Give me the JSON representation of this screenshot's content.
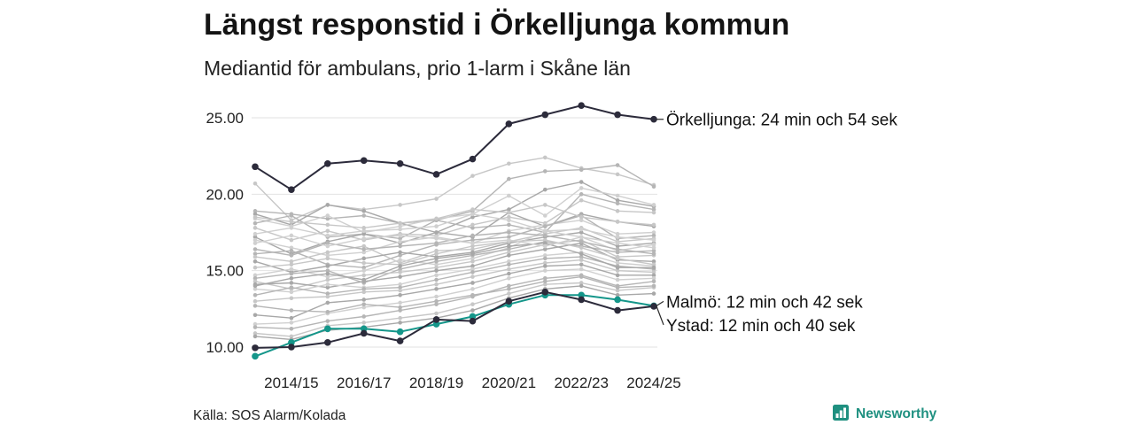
{
  "chart_data": {
    "type": "line",
    "title": "Längst responstid i Örkelljunga kommun",
    "subtitle": "Mediantid för ambulans, prio 1-larm i Skåne län",
    "x": [
      2013,
      2014,
      2015,
      2016,
      2017,
      2018,
      2019,
      2020,
      2021,
      2022,
      2023,
      2024
    ],
    "x_ticks": [
      {
        "value": 2014,
        "label": "2014/15"
      },
      {
        "value": 2016,
        "label": "2016/17"
      },
      {
        "value": 2018,
        "label": "2018/19"
      },
      {
        "value": 2020,
        "label": "2020/21"
      },
      {
        "value": 2022,
        "label": "2022/23"
      },
      {
        "value": 2024,
        "label": "2024/25"
      }
    ],
    "y_ticks": [
      {
        "value": 10,
        "label": "10.00"
      },
      {
        "value": 15,
        "label": "15.00"
      },
      {
        "value": 20,
        "label": "20.00"
      },
      {
        "value": 25,
        "label": "25.00"
      }
    ],
    "ylim": [
      10,
      25
    ],
    "grid": true,
    "grid_color": "#e2e2e2",
    "annotation_color": "#2a2a2a",
    "highlighted_series": [
      {
        "label": "Örkelljunga: 24 min och 54 sek",
        "color": "#2c2b3b",
        "values": [
          21.8,
          20.3,
          22.0,
          22.2,
          22.0,
          21.3,
          22.3,
          24.6,
          25.2,
          25.8,
          25.2,
          24.9
        ]
      },
      {
        "label": "Malmö: 12 min och 42 sek",
        "color": "#14968a",
        "values": [
          9.4,
          10.3,
          11.2,
          11.2,
          11.0,
          11.5,
          12.0,
          12.8,
          13.4,
          13.4,
          13.1,
          12.7
        ]
      },
      {
        "label": "Ystad: 12 min och 40 sek",
        "color": "#2c2b3b",
        "values": [
          9.95,
          10.0,
          10.3,
          10.9,
          10.4,
          11.8,
          11.7,
          13.0,
          13.6,
          13.1,
          12.4,
          12.67
        ]
      }
    ],
    "background_series": [
      {
        "color": "#c7c7c7",
        "values": [
          20.7,
          18.3,
          19.3,
          19.0,
          19.3,
          19.7,
          21.2,
          22.0,
          22.4,
          21.7,
          21.3,
          20.6
        ]
      },
      {
        "color": "#b5b5b5",
        "values": [
          18.9,
          18.7,
          18.4,
          18.6,
          18.1,
          18.3,
          18.9,
          21.0,
          21.5,
          21.6,
          21.9,
          20.5
        ]
      },
      {
        "color": "#a8a8a8",
        "values": [
          18.7,
          18.0,
          19.3,
          18.9,
          18.1,
          17.5,
          18.5,
          19.0,
          20.3,
          20.8,
          19.6,
          19.2
        ]
      },
      {
        "color": "#d0d0d0",
        "values": [
          18.4,
          17.9,
          18.6,
          17.5,
          17.9,
          18.4,
          18.7,
          19.9,
          18.6,
          20.4,
          19.9,
          19.3
        ]
      },
      {
        "color": "#b5b5b5",
        "values": [
          18.1,
          18.6,
          17.2,
          17.4,
          17.1,
          18.3,
          17.8,
          18.0,
          17.5,
          20.0,
          19.4,
          19.0
        ]
      },
      {
        "color": "#c7c7c7",
        "values": [
          17.8,
          17.0,
          17.6,
          17.0,
          17.4,
          17.3,
          18.0,
          18.5,
          18.1,
          19.6,
          18.9,
          18.8
        ]
      },
      {
        "color": "#a8a8a8",
        "values": [
          17.2,
          16.1,
          16.9,
          17.4,
          16.8,
          17.5,
          17.2,
          18.8,
          17.9,
          18.7,
          18.2,
          17.9
        ]
      },
      {
        "color": "#d0d0d0",
        "values": [
          17.0,
          16.5,
          16.0,
          16.2,
          16.9,
          17.2,
          16.8,
          17.6,
          18.0,
          18.3,
          17.4,
          17.5
        ]
      },
      {
        "color": "#b5b5b5",
        "values": [
          16.1,
          16.3,
          15.4,
          15.2,
          16.0,
          16.7,
          17.0,
          17.2,
          17.9,
          18.6,
          17.1,
          17.3
        ]
      },
      {
        "color": "#c7c7c7",
        "values": [
          15.9,
          15.6,
          16.2,
          16.6,
          15.5,
          16.3,
          16.4,
          16.9,
          17.4,
          17.8,
          16.9,
          17.1
        ]
      },
      {
        "color": "#a8a8a8",
        "values": [
          15.6,
          14.9,
          15.3,
          15.8,
          16.2,
          15.9,
          16.2,
          16.8,
          17.2,
          17.5,
          16.6,
          16.8
        ]
      },
      {
        "color": "#d0d0d0",
        "values": [
          14.7,
          15.1,
          14.6,
          15.0,
          15.7,
          15.4,
          15.8,
          16.5,
          17.6,
          17.2,
          16.3,
          16.7
        ]
      },
      {
        "color": "#b5b5b5",
        "values": [
          14.5,
          14.8,
          15.0,
          14.2,
          15.1,
          15.6,
          16.0,
          16.4,
          16.9,
          16.6,
          16.2,
          16.3
        ]
      },
      {
        "color": "#c7c7c7",
        "values": [
          14.3,
          13.8,
          14.4,
          14.7,
          14.9,
          15.2,
          15.6,
          16.2,
          16.7,
          17.0,
          15.9,
          16.0
        ]
      },
      {
        "color": "#a8a8a8",
        "values": [
          14.1,
          14.2,
          13.9,
          14.3,
          14.6,
          15.0,
          15.3,
          16.0,
          16.4,
          16.8,
          15.7,
          15.6
        ]
      },
      {
        "color": "#d0d0d0",
        "values": [
          13.8,
          13.6,
          14.1,
          13.9,
          14.1,
          14.7,
          15.1,
          15.6,
          16.0,
          16.2,
          15.5,
          15.3
        ]
      },
      {
        "color": "#b5b5b5",
        "values": [
          13.4,
          13.9,
          13.5,
          13.8,
          13.9,
          14.4,
          14.9,
          15.4,
          15.8,
          15.9,
          15.3,
          15.1
        ]
      },
      {
        "color": "#c7c7c7",
        "values": [
          13.0,
          13.2,
          13.3,
          13.6,
          13.7,
          14.1,
          14.6,
          15.1,
          15.5,
          15.7,
          15.0,
          14.9
        ]
      },
      {
        "color": "#a8a8a8",
        "values": [
          12.1,
          11.9,
          12.9,
          13.1,
          13.4,
          13.8,
          14.2,
          14.8,
          15.3,
          15.4,
          14.7,
          14.7
        ]
      },
      {
        "color": "#d0d0d0",
        "values": [
          11.5,
          11.6,
          12.2,
          12.6,
          12.9,
          13.3,
          13.8,
          14.5,
          15.0,
          15.1,
          14.4,
          14.5
        ]
      },
      {
        "color": "#b5b5b5",
        "values": [
          11.3,
          11.2,
          11.7,
          12.0,
          12.4,
          12.8,
          13.3,
          14.0,
          14.5,
          14.7,
          14.0,
          14.3
        ]
      },
      {
        "color": "#c7c7c7",
        "values": [
          10.9,
          10.7,
          11.4,
          11.6,
          11.9,
          12.2,
          12.8,
          13.5,
          14.1,
          14.2,
          13.7,
          13.9
        ]
      },
      {
        "color": "#a8a8a8",
        "values": [
          10.7,
          10.5,
          11.1,
          11.3,
          11.6,
          11.9,
          12.4,
          13.2,
          13.8,
          14.0,
          13.4,
          13.5
        ]
      },
      {
        "color": "#d0d0d0",
        "values": [
          17.4,
          17.8,
          17.3,
          17.6,
          17.7,
          17.9,
          18.7,
          18.3,
          17.6,
          17.7,
          17.2,
          17.0
        ]
      },
      {
        "color": "#b5b5b5",
        "values": [
          16.4,
          16.0,
          16.8,
          16.4,
          16.6,
          16.8,
          17.3,
          17.5,
          17.3,
          16.9,
          16.4,
          16.1
        ]
      },
      {
        "color": "#c7c7c7",
        "values": [
          15.2,
          15.4,
          15.8,
          15.5,
          15.4,
          16.1,
          16.6,
          16.9,
          17.0,
          16.5,
          15.8,
          15.4
        ]
      },
      {
        "color": "#a8a8a8",
        "values": [
          14.0,
          14.5,
          14.8,
          14.4,
          15.3,
          15.8,
          16.1,
          16.6,
          16.8,
          16.1,
          15.2,
          15.2
        ]
      },
      {
        "color": "#d0d0d0",
        "values": [
          16.8,
          17.3,
          16.6,
          17.1,
          17.3,
          17.1,
          16.8,
          17.0,
          16.6,
          17.2,
          16.8,
          16.5
        ]
      },
      {
        "color": "#b5b5b5",
        "values": [
          12.7,
          12.4,
          12.3,
          12.8,
          12.6,
          13.0,
          13.4,
          13.8,
          14.3,
          14.6,
          13.9,
          14.0
        ]
      },
      {
        "color": "#c7c7c7",
        "values": [
          18.5,
          18.2,
          18.0,
          17.8,
          18.1,
          18.4,
          19.0,
          18.8,
          19.3,
          18.5,
          18.2,
          18.0
        ]
      }
    ]
  },
  "source": "Källa: SOS Alarm/Kolada",
  "logo": {
    "text": "Newsworthy",
    "icon": "bar-chart-icon",
    "color": "#1f9080"
  }
}
